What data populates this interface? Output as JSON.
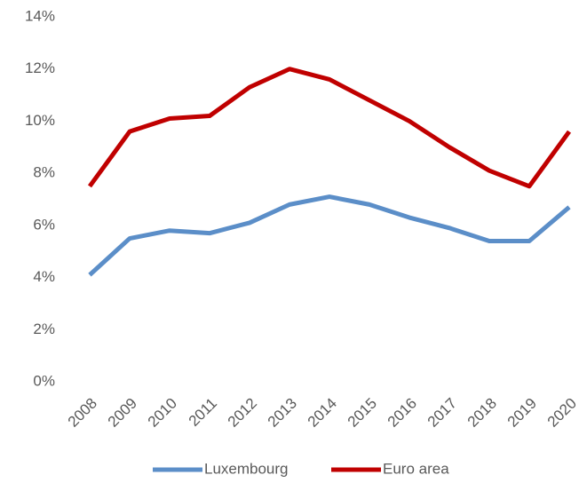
{
  "chart_data": {
    "type": "line",
    "categories": [
      "2008",
      "2009",
      "2010",
      "2011",
      "2012",
      "2013",
      "2014",
      "2015",
      "2016",
      "2017",
      "2018",
      "2019",
      "2020"
    ],
    "series": [
      {
        "name": "Luxembourg",
        "color": "#5b8ec8",
        "values": [
          4.1,
          5.5,
          5.8,
          5.7,
          6.1,
          6.8,
          7.1,
          6.8,
          6.3,
          5.9,
          5.4,
          5.4,
          6.7
        ]
      },
      {
        "name": "Euro area",
        "color": "#c00000",
        "values": [
          7.5,
          9.6,
          10.1,
          10.2,
          11.3,
          12.0,
          11.6,
          10.8,
          10.0,
          9.0,
          8.1,
          7.5,
          9.6
        ]
      }
    ],
    "ylim": [
      0,
      14
    ],
    "yticks": [
      {
        "value": 0,
        "label": "0%"
      },
      {
        "value": 2,
        "label": "2%"
      },
      {
        "value": 4,
        "label": "4%"
      },
      {
        "value": 6,
        "label": "6%"
      },
      {
        "value": 8,
        "label": "8%"
      },
      {
        "value": 10,
        "label": "10%"
      },
      {
        "value": 12,
        "label": "12%"
      },
      {
        "value": 14,
        "label": "14%"
      }
    ],
    "grid": false,
    "legend": "bottom"
  }
}
